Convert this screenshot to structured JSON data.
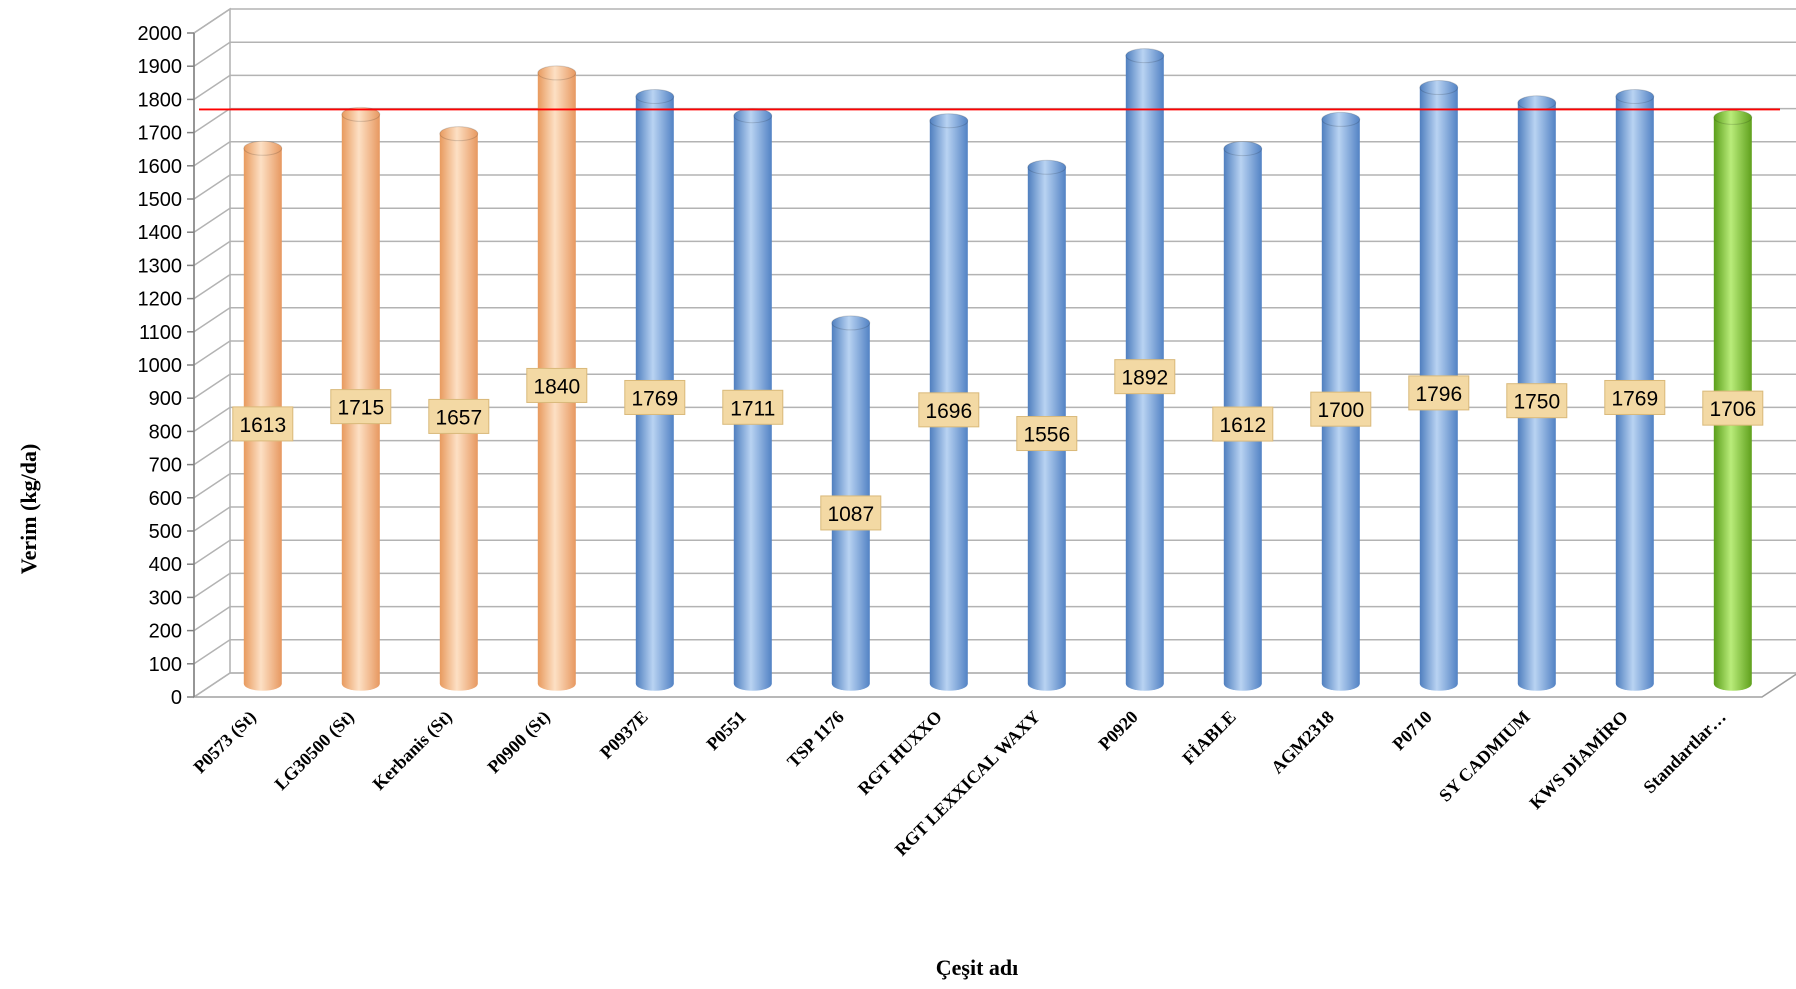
{
  "chart_data": {
    "type": "bar",
    "style": "3d-cylinder",
    "title": "",
    "xlabel": "Çeşit adı",
    "ylabel": "Verim (kg/da)",
    "ylim": [
      0,
      2000
    ],
    "ytick_step": 100,
    "grid": true,
    "reference_line": {
      "value": 1730,
      "color": "#ff0000"
    },
    "colors": {
      "standard": "#f7b98a",
      "variety": "#7aa6dc",
      "mean": "#88c93a",
      "label_bg": "#f3d9a4"
    },
    "categories": [
      "P0573 (St)",
      "LG30500 (St)",
      "Kerbanis (St)",
      "P0900 (St)",
      "P0937E",
      "P0551",
      "TSP 1176",
      "RGT HUXXO",
      "RGT LEXXICAL WAXY",
      "P0920",
      "FİABLE",
      "AGM2318",
      "P0710",
      "SY CADMIUM",
      "KWS DİAMİRO",
      "Standartlar…"
    ],
    "values": [
      1613,
      1715,
      1657,
      1840,
      1769,
      1711,
      1087,
      1696,
      1556,
      1892,
      1612,
      1700,
      1796,
      1750,
      1769,
      1706
    ],
    "data_labels": [
      "1613",
      "1715",
      "1657",
      "1840",
      "1769",
      "1711",
      "1087",
      "1696",
      "1556",
      "1892",
      "1612",
      "1700",
      "1796",
      "1750",
      "1769",
      "1706"
    ],
    "bar_groups": [
      "standard",
      "standard",
      "standard",
      "standard",
      "variety",
      "variety",
      "variety",
      "variety",
      "variety",
      "variety",
      "variety",
      "variety",
      "variety",
      "variety",
      "variety",
      "mean"
    ]
  }
}
